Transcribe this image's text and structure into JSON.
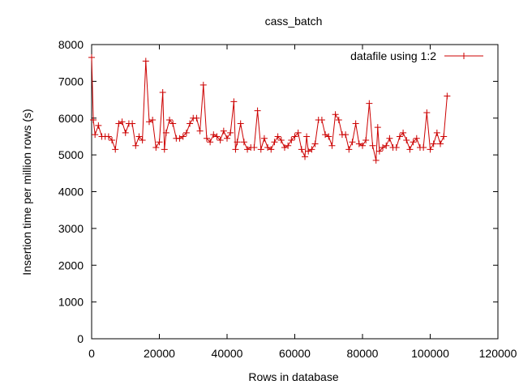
{
  "chart_data": {
    "type": "line",
    "title": "cass_batch",
    "xlabel": "Rows in database",
    "ylabel": "Insertion time per million rows (s)",
    "xlim": [
      0,
      120000
    ],
    "ylim": [
      0,
      8000
    ],
    "x_ticks": [
      0,
      20000,
      40000,
      60000,
      80000,
      100000,
      120000
    ],
    "y_ticks": [
      0,
      1000,
      2000,
      3000,
      4000,
      5000,
      6000,
      7000,
      8000
    ],
    "x_tick_labels": [
      "0",
      "20000",
      "40000",
      "60000",
      "80000",
      "100000",
      "120000"
    ],
    "y_tick_labels": [
      "0",
      "1000",
      "2000",
      "3000",
      "4000",
      "5000",
      "6000",
      "7000",
      "8000"
    ],
    "grid": false,
    "legend_position": "top-right",
    "series": [
      {
        "name": "datafile using 1:2",
        "color": "#cc0000",
        "marker": "plus",
        "points": [
          [
            0,
            7650
          ],
          [
            500,
            5950
          ],
          [
            1000,
            5550
          ],
          [
            2000,
            5800
          ],
          [
            3000,
            5500
          ],
          [
            4000,
            5500
          ],
          [
            5000,
            5500
          ],
          [
            6000,
            5400
          ],
          [
            7000,
            5150
          ],
          [
            8000,
            5850
          ],
          [
            9000,
            5900
          ],
          [
            10000,
            5600
          ],
          [
            11000,
            5850
          ],
          [
            12000,
            5850
          ],
          [
            13000,
            5250
          ],
          [
            14000,
            5500
          ],
          [
            15000,
            5400
          ],
          [
            16000,
            7550
          ],
          [
            17000,
            5900
          ],
          [
            18000,
            5950
          ],
          [
            19000,
            5200
          ],
          [
            20000,
            5350
          ],
          [
            21000,
            6700
          ],
          [
            21500,
            5150
          ],
          [
            22000,
            5600
          ],
          [
            23000,
            5950
          ],
          [
            24000,
            5850
          ],
          [
            25000,
            5450
          ],
          [
            26000,
            5450
          ],
          [
            27000,
            5500
          ],
          [
            28000,
            5600
          ],
          [
            29000,
            5850
          ],
          [
            30000,
            6000
          ],
          [
            31000,
            6000
          ],
          [
            32000,
            5650
          ],
          [
            33000,
            6900
          ],
          [
            34000,
            5450
          ],
          [
            35000,
            5350
          ],
          [
            36000,
            5550
          ],
          [
            37000,
            5500
          ],
          [
            38000,
            5400
          ],
          [
            39000,
            5650
          ],
          [
            40000,
            5450
          ],
          [
            41000,
            5600
          ],
          [
            42000,
            6450
          ],
          [
            42500,
            5150
          ],
          [
            43000,
            5350
          ],
          [
            44000,
            5850
          ],
          [
            45000,
            5350
          ],
          [
            46000,
            5150
          ],
          [
            47000,
            5200
          ],
          [
            48000,
            5200
          ],
          [
            49000,
            6200
          ],
          [
            50000,
            5150
          ],
          [
            51000,
            5450
          ],
          [
            52000,
            5200
          ],
          [
            53000,
            5150
          ],
          [
            54000,
            5350
          ],
          [
            55000,
            5500
          ],
          [
            56000,
            5400
          ],
          [
            57000,
            5200
          ],
          [
            58000,
            5250
          ],
          [
            59000,
            5400
          ],
          [
            60000,
            5500
          ],
          [
            61000,
            5600
          ],
          [
            62000,
            5150
          ],
          [
            63000,
            4950
          ],
          [
            63500,
            5500
          ],
          [
            64000,
            5100
          ],
          [
            65000,
            5150
          ],
          [
            66000,
            5300
          ],
          [
            67000,
            5950
          ],
          [
            68000,
            5950
          ],
          [
            69000,
            5550
          ],
          [
            70000,
            5500
          ],
          [
            71000,
            5250
          ],
          [
            72000,
            6100
          ],
          [
            73000,
            5950
          ],
          [
            74000,
            5550
          ],
          [
            75000,
            5550
          ],
          [
            76000,
            5150
          ],
          [
            77000,
            5350
          ],
          [
            78000,
            5850
          ],
          [
            79000,
            5300
          ],
          [
            80000,
            5250
          ],
          [
            81000,
            5400
          ],
          [
            82000,
            6400
          ],
          [
            83000,
            5250
          ],
          [
            84000,
            4850
          ],
          [
            84500,
            5750
          ],
          [
            85000,
            5100
          ],
          [
            86000,
            5200
          ],
          [
            87000,
            5250
          ],
          [
            88000,
            5450
          ],
          [
            89000,
            5200
          ],
          [
            90000,
            5200
          ],
          [
            91000,
            5500
          ],
          [
            92000,
            5600
          ],
          [
            93000,
            5400
          ],
          [
            94000,
            5150
          ],
          [
            95000,
            5350
          ],
          [
            96000,
            5450
          ],
          [
            97000,
            5200
          ],
          [
            98000,
            5200
          ],
          [
            99000,
            6150
          ],
          [
            100000,
            5150
          ],
          [
            101000,
            5300
          ],
          [
            102000,
            5600
          ],
          [
            103000,
            5300
          ],
          [
            104000,
            5500
          ],
          [
            105000,
            6600
          ]
        ]
      }
    ]
  }
}
